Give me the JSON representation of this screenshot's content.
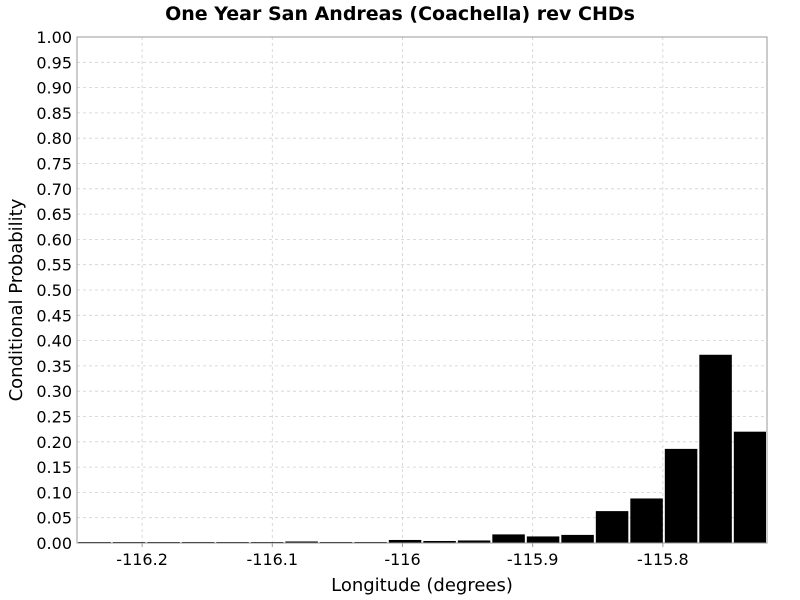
{
  "chart_data": {
    "type": "bar",
    "title": "One Year San Andreas (Coachella) rev CHDs",
    "xlabel": "Longitude (degrees)",
    "ylabel": "Conditional Probability",
    "xlim": [
      -116.25,
      -115.72
    ],
    "ylim": [
      0,
      1.0
    ],
    "grid": true,
    "bar_color": "#000000",
    "x_ticks": [
      -116.2,
      -116.1,
      -116.0,
      -115.9,
      -115.8
    ],
    "x_tick_labels": [
      "-116.2",
      "-116.1",
      "-116",
      "-115.9",
      "-115.8"
    ],
    "y_ticks": [
      0.0,
      0.05,
      0.1,
      0.15,
      0.2,
      0.25,
      0.3,
      0.35,
      0.4,
      0.45,
      0.5,
      0.55,
      0.6,
      0.65,
      0.7,
      0.75,
      0.8,
      0.85,
      0.9,
      0.95,
      1.0
    ],
    "y_tick_labels": [
      "0.00",
      "0.05",
      "0.10",
      "0.15",
      "0.20",
      "0.25",
      "0.30",
      "0.35",
      "0.40",
      "0.45",
      "0.50",
      "0.55",
      "0.60",
      "0.65",
      "0.70",
      "0.75",
      "0.80",
      "0.85",
      "0.90",
      "0.95",
      "1.00"
    ],
    "bin_width": 0.0265,
    "bins": [
      {
        "x": -116.2365,
        "value": 0.001
      },
      {
        "x": -116.21,
        "value": 0.001
      },
      {
        "x": -116.1835,
        "value": 0.001
      },
      {
        "x": -116.157,
        "value": 0.002
      },
      {
        "x": -116.1305,
        "value": 0.001
      },
      {
        "x": -116.104,
        "value": 0.001
      },
      {
        "x": -116.0775,
        "value": 0.003
      },
      {
        "x": -116.051,
        "value": 0.002
      },
      {
        "x": -116.0245,
        "value": 0.002
      },
      {
        "x": -115.998,
        "value": 0.006
      },
      {
        "x": -115.9715,
        "value": 0.004
      },
      {
        "x": -115.945,
        "value": 0.005
      },
      {
        "x": -115.9185,
        "value": 0.017
      },
      {
        "x": -115.892,
        "value": 0.013
      },
      {
        "x": -115.8655,
        "value": 0.016
      },
      {
        "x": -115.839,
        "value": 0.063
      },
      {
        "x": -115.8125,
        "value": 0.088
      },
      {
        "x": -115.786,
        "value": 0.186
      },
      {
        "x": -115.7595,
        "value": 0.372
      },
      {
        "x": -115.733,
        "value": 0.22
      }
    ]
  }
}
